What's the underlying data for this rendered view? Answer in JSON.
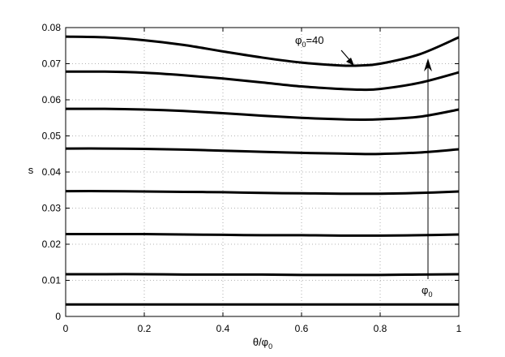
{
  "chart_data": {
    "type": "line",
    "xlabel": {
      "main": "θ/φ",
      "sub": "0"
    },
    "ylabel": "s",
    "xlim": [
      0,
      1
    ],
    "ylim": [
      0,
      0.08
    ],
    "xticks": [
      "0",
      "0.2",
      "0.4",
      "0.6",
      "0.8",
      "1"
    ],
    "yticks": [
      "0",
      "0.01",
      "0.02",
      "0.03",
      "0.04",
      "0.05",
      "0.06",
      "0.07",
      "0.08"
    ],
    "grid": true,
    "x": [
      0,
      0.1,
      0.2,
      0.3,
      0.4,
      0.5,
      0.6,
      0.7,
      0.75,
      0.8,
      0.9,
      1.0
    ],
    "series": [
      {
        "values": [
          0.0033,
          0.0033,
          0.0033,
          0.0033,
          0.0033,
          0.0033,
          0.0033,
          0.0033,
          0.0033,
          0.0033,
          0.0033,
          0.0033
        ]
      },
      {
        "values": [
          0.0117,
          0.0117,
          0.0117,
          0.0116,
          0.0116,
          0.0116,
          0.0115,
          0.0115,
          0.0115,
          0.0115,
          0.0116,
          0.0117
        ]
      },
      {
        "values": [
          0.0228,
          0.0228,
          0.0228,
          0.0227,
          0.0226,
          0.0225,
          0.0225,
          0.0224,
          0.0224,
          0.0224,
          0.0225,
          0.0227
        ]
      },
      {
        "values": [
          0.0347,
          0.0347,
          0.0346,
          0.0345,
          0.0344,
          0.0342,
          0.0341,
          0.034,
          0.034,
          0.034,
          0.0342,
          0.0346
        ]
      },
      {
        "values": [
          0.0465,
          0.0465,
          0.0464,
          0.0462,
          0.0459,
          0.0456,
          0.0453,
          0.0451,
          0.045,
          0.045,
          0.0454,
          0.0463
        ]
      },
      {
        "values": [
          0.0575,
          0.0575,
          0.0573,
          0.0569,
          0.0563,
          0.0556,
          0.055,
          0.0546,
          0.0545,
          0.0546,
          0.0553,
          0.0573
        ]
      },
      {
        "values": [
          0.0678,
          0.0678,
          0.0675,
          0.0668,
          0.0659,
          0.0648,
          0.0637,
          0.063,
          0.0628,
          0.063,
          0.0647,
          0.0676
        ]
      },
      {
        "values": [
          0.0775,
          0.0773,
          0.0765,
          0.0752,
          0.0734,
          0.0717,
          0.0703,
          0.0695,
          0.0695,
          0.07,
          0.0726,
          0.0773
        ]
      }
    ],
    "annotations": {
      "top_curve_label": {
        "main": "φ",
        "sub": "0",
        "tail": "=40"
      },
      "arrow_label": {
        "main": "φ",
        "sub": "0"
      }
    }
  }
}
